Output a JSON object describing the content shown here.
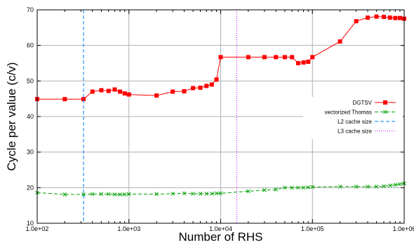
{
  "chart_data": {
    "type": "line",
    "xlabel": "Number of RHS",
    "ylabel": "Cycle per value (c/v)",
    "xscale": "log",
    "xlim": [
      100,
      1000000
    ],
    "ylim": [
      10,
      70
    ],
    "grid": true,
    "legend_position": "right",
    "x_tick_labels": [
      "1.0e+02",
      "1.0e+03",
      "1.0e+04",
      "1.0e+05",
      "1.0e+06"
    ],
    "x_ticks": [
      100,
      1000,
      10000,
      100000,
      1000000
    ],
    "y_ticks": [
      10,
      20,
      30,
      40,
      50,
      60,
      70
    ],
    "y_tick_labels": [
      "10",
      "20",
      "30",
      "40",
      "50",
      "60",
      "70"
    ],
    "series": [
      {
        "name": "DGTSV",
        "color": "#ff0000",
        "style": "solid",
        "marker": "square",
        "x": [
          100,
          200,
          320,
          400,
          500,
          600,
          700,
          800,
          900,
          1000,
          2000,
          3000,
          4000,
          5000,
          6000,
          7000,
          8000,
          9000,
          10000,
          20000,
          30000,
          40000,
          50000,
          60000,
          70000,
          80000,
          90000,
          100000,
          200000,
          300000,
          400000,
          500000,
          600000,
          700000,
          800000,
          900000,
          1000000
        ],
        "y": [
          44.9,
          44.9,
          44.9,
          47.0,
          47.4,
          47.2,
          47.6,
          47.0,
          46.5,
          46.2,
          45.9,
          47.0,
          47.1,
          48.0,
          48.1,
          48.6,
          49.0,
          50.4,
          56.7,
          56.7,
          56.7,
          56.7,
          56.7,
          56.7,
          55.0,
          55.2,
          55.4,
          56.7,
          61.1,
          66.8,
          67.8,
          68.1,
          68.0,
          67.8,
          67.7,
          67.7,
          67.5
        ]
      },
      {
        "name": "vectorized Thomas",
        "color": "#00a000",
        "style": "dashed",
        "marker": "x",
        "x": [
          100,
          200,
          320,
          400,
          500,
          600,
          700,
          800,
          900,
          1000,
          2000,
          3000,
          4000,
          5000,
          6000,
          7000,
          8000,
          9000,
          10000,
          20000,
          30000,
          40000,
          50000,
          60000,
          70000,
          80000,
          90000,
          100000,
          200000,
          300000,
          400000,
          500000,
          600000,
          700000,
          800000,
          900000,
          1000000
        ],
        "y": [
          18.6,
          18.1,
          18.1,
          18.2,
          18.2,
          18.2,
          18.1,
          18.1,
          18.1,
          18.2,
          18.2,
          18.3,
          18.4,
          18.3,
          18.3,
          18.3,
          18.3,
          18.4,
          18.4,
          19.0,
          19.3,
          19.5,
          20.0,
          20.0,
          20.0,
          20.0,
          20.1,
          20.2,
          20.3,
          20.3,
          20.3,
          20.3,
          20.4,
          20.6,
          20.8,
          21.0,
          21.2
        ]
      },
      {
        "name": "L2 cache size",
        "color": "#0080ff",
        "style": "dashed",
        "marker": "none",
        "vertical_line_x": 320
      },
      {
        "name": "L3 cache size",
        "color": "#c000ff",
        "style": "dotted",
        "marker": "none",
        "vertical_line_x": 15000
      }
    ]
  }
}
